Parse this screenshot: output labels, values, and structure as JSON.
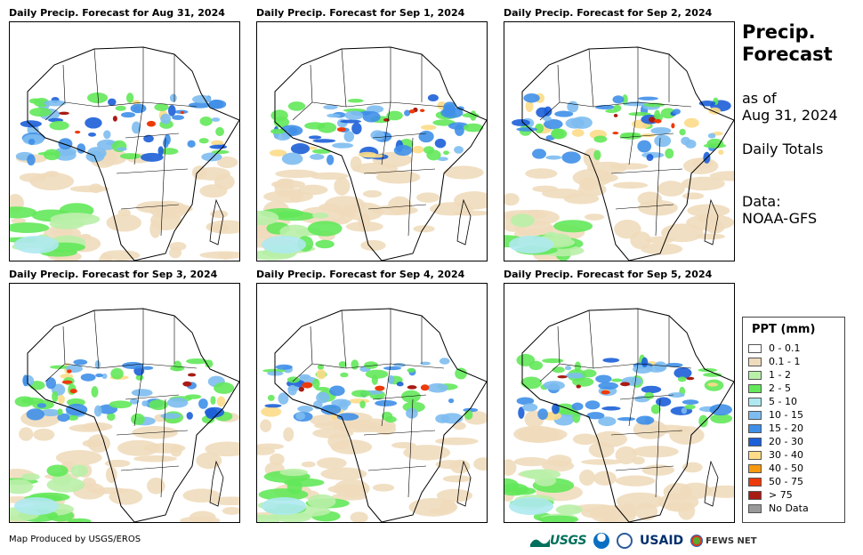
{
  "panels": [
    {
      "title": "Daily Precip. Forecast for Aug 31, 2024"
    },
    {
      "title": "Daily Precip. Forecast for Sep 1, 2024"
    },
    {
      "title": "Daily Precip. Forecast for Sep 2, 2024"
    },
    {
      "title": "Daily Precip. Forecast for Sep 3, 2024"
    },
    {
      "title": "Daily Precip. Forecast for Sep 4, 2024"
    },
    {
      "title": "Daily Precip. Forecast for Sep 5, 2024"
    }
  ],
  "side": {
    "heading_line1": "Precip.",
    "heading_line2": "Forecast",
    "as_of_line1": "as of",
    "as_of_line2": "Aug 31, 2024",
    "daily": "Daily Totals",
    "data_line1": "Data:",
    "data_line2": "NOAA-GFS"
  },
  "legend": {
    "title": "PPT (mm)",
    "items": [
      {
        "label": "0 - 0.1",
        "color": "#ffffff"
      },
      {
        "label": "0.1 - 1",
        "color": "#efdcbd"
      },
      {
        "label": "1 - 2",
        "color": "#b9f0a8"
      },
      {
        "label": "2 - 5",
        "color": "#63e85a"
      },
      {
        "label": "5 - 10",
        "color": "#aee9f0"
      },
      {
        "label": "10 - 15",
        "color": "#7dbcf0"
      },
      {
        "label": "15 - 20",
        "color": "#3f8fe8"
      },
      {
        "label": "20 - 30",
        "color": "#1c5fd8"
      },
      {
        "label": "30 - 40",
        "color": "#fcdc88"
      },
      {
        "label": "40 - 50",
        "color": "#f79a10"
      },
      {
        "label": "50 - 75",
        "color": "#ee3a0a"
      },
      {
        "label": "> 75",
        "color": "#a81c14"
      },
      {
        "label": "No Data",
        "color": "#999999"
      }
    ]
  },
  "footer": {
    "credit": "Map Produced by USGS/EROS",
    "logos": {
      "usgs": "USGS",
      "usaid": "USAID",
      "fews": "FEWS NET"
    }
  }
}
